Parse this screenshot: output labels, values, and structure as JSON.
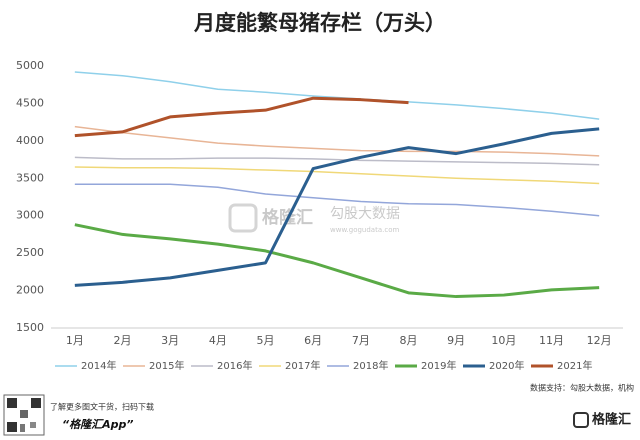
{
  "chart_data": {
    "type": "line",
    "title": "月度能繁母猪存栏（万头）",
    "categories": [
      "1月",
      "2月",
      "3月",
      "4月",
      "5月",
      "6月",
      "7月",
      "8月",
      "9月",
      "10月",
      "11月",
      "12月"
    ],
    "ylim": [
      1500,
      5000
    ],
    "yticks": [
      1500,
      2000,
      2500,
      3000,
      3500,
      4000,
      4500,
      5000
    ],
    "grid": false,
    "series": [
      {
        "name": "2014年",
        "color": "#8fd0ea",
        "values": [
          4920,
          4870,
          4790,
          4690,
          4650,
          4600,
          4560,
          4520,
          4480,
          4430,
          4370,
          4290
        ]
      },
      {
        "name": "2015年",
        "color": "#e8b596",
        "values": [
          4190,
          4110,
          4040,
          3970,
          3930,
          3900,
          3870,
          3860,
          3860,
          3850,
          3830,
          3800
        ]
      },
      {
        "name": "2016年",
        "color": "#bcbcc8",
        "values": [
          3780,
          3760,
          3760,
          3770,
          3770,
          3760,
          3740,
          3730,
          3720,
          3710,
          3700,
          3680
        ]
      },
      {
        "name": "2017年",
        "color": "#f0d878",
        "values": [
          3650,
          3640,
          3640,
          3630,
          3610,
          3590,
          3560,
          3530,
          3500,
          3480,
          3460,
          3430
        ]
      },
      {
        "name": "2018年",
        "color": "#93a6da",
        "values": [
          3420,
          3420,
          3420,
          3380,
          3290,
          3240,
          3190,
          3160,
          3150,
          3110,
          3060,
          3000
        ]
      },
      {
        "name": "2019年",
        "color": "#5aaa46",
        "values": [
          2880,
          2750,
          2690,
          2620,
          2530,
          2370,
          2170,
          1970,
          1920,
          1940,
          2010,
          2040
        ]
      },
      {
        "name": "2020年",
        "color": "#2b5f8f",
        "values": [
          2070,
          2110,
          2170,
          2270,
          2370,
          3630,
          3780,
          3910,
          3830,
          3960,
          4100,
          4160
        ]
      },
      {
        "name": "2021年",
        "color": "#b0522a",
        "values": [
          4070,
          4120,
          4320,
          4370,
          4410,
          4570,
          4550,
          4510,
          null,
          null,
          null,
          null
        ]
      }
    ],
    "annotations": [
      "数据支持：勾股大数据，机构"
    ]
  },
  "branding": {
    "watermark": "格隆汇",
    "watermark_site": "勾股大数据",
    "watermark_url": "www.gogudata.com",
    "promo": "了解更多图文干货，扫码下载",
    "app": "“格隆汇App”",
    "logo": "格隆汇"
  }
}
